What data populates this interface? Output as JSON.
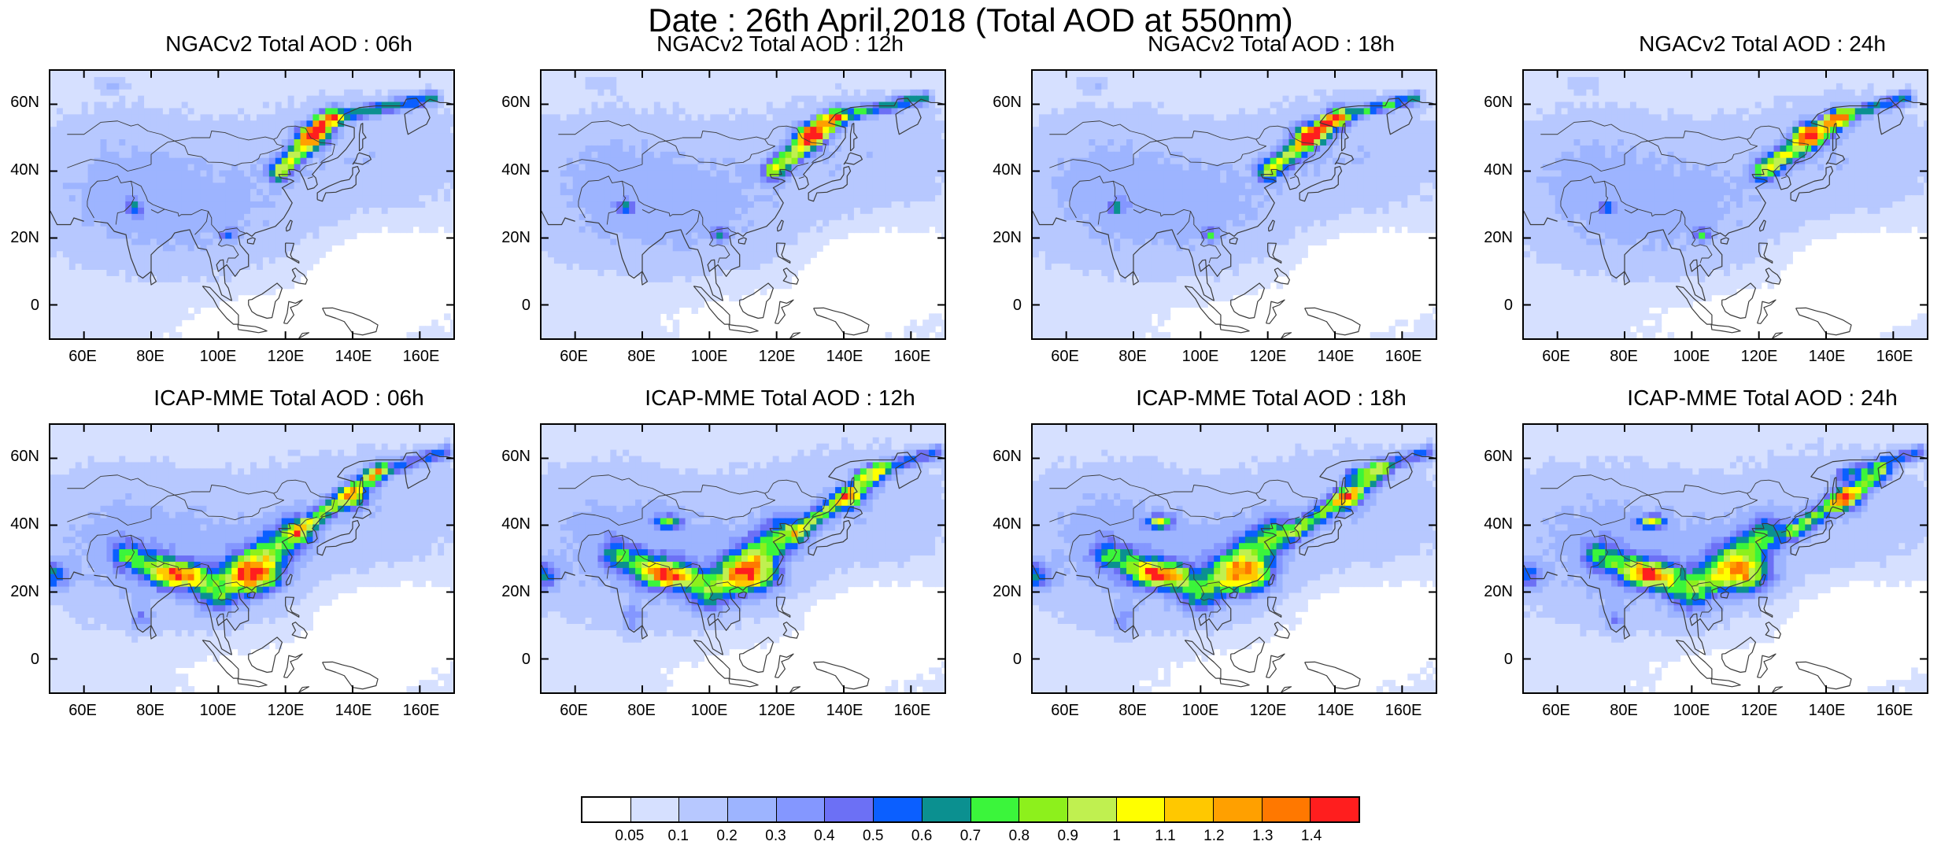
{
  "title": "Date : 26th April,2018 (Total AOD at 550nm)",
  "panels": [
    {
      "title": "NGACv2 Total AOD : 06h",
      "model": "ngac",
      "hour": 6
    },
    {
      "title": "NGACv2 Total AOD : 12h",
      "model": "ngac",
      "hour": 12
    },
    {
      "title": "NGACv2 Total AOD : 18h",
      "model": "ngac",
      "hour": 18
    },
    {
      "title": "NGACv2 Total AOD : 24h",
      "model": "ngac",
      "hour": 24
    },
    {
      "title": "ICAP-MME Total AOD : 06h",
      "model": "icap",
      "hour": 6
    },
    {
      "title": "ICAP-MME Total AOD : 12h",
      "model": "icap",
      "hour": 12
    },
    {
      "title": "ICAP-MME Total AOD : 18h",
      "model": "icap",
      "hour": 18
    },
    {
      "title": "ICAP-MME Total AOD : 24h",
      "model": "icap",
      "hour": 24
    }
  ],
  "axes": {
    "lon_range": [
      50,
      170
    ],
    "lat_range": [
      -10,
      70
    ],
    "lat_ticks": [
      {
        "value": 60,
        "label": "60N"
      },
      {
        "value": 40,
        "label": "40N"
      },
      {
        "value": 20,
        "label": "20N"
      },
      {
        "value": 0,
        "label": "0"
      }
    ],
    "lon_ticks": [
      {
        "value": 60,
        "label": "60E"
      },
      {
        "value": 80,
        "label": "80E"
      },
      {
        "value": 100,
        "label": "100E"
      },
      {
        "value": 120,
        "label": "120E"
      },
      {
        "value": 140,
        "label": "140E"
      },
      {
        "value": 160,
        "label": "160E"
      }
    ]
  },
  "colorbar": {
    "colors": [
      "#ffffff",
      "#d6e0ff",
      "#b7c8ff",
      "#9db4ff",
      "#8497ff",
      "#6c70f5",
      "#0b5fff",
      "#0b9090",
      "#3bf53b",
      "#8df01c",
      "#c0f050",
      "#ffff00",
      "#ffc800",
      "#ffa000",
      "#ff7800",
      "#ff1e1e"
    ],
    "labels": [
      "0.05",
      "0.1",
      "0.2",
      "0.3",
      "0.4",
      "0.5",
      "0.6",
      "0.7",
      "0.8",
      "0.9",
      "1",
      "1.1",
      "1.2",
      "1.3",
      "1.4"
    ]
  }
}
